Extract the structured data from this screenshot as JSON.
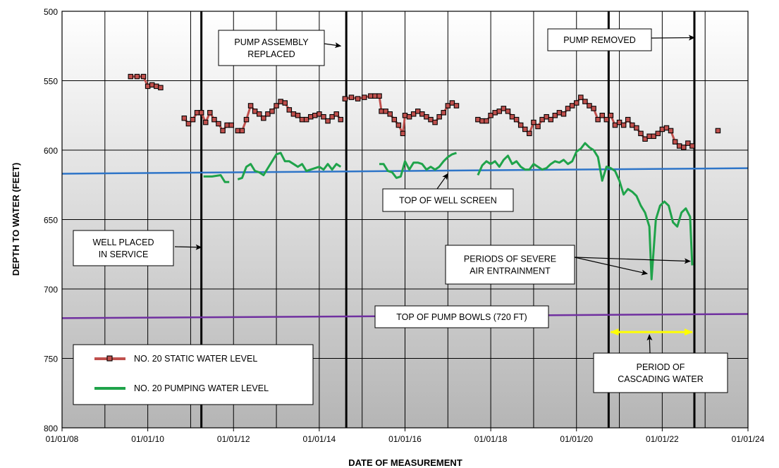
{
  "chart_data": {
    "type": "line",
    "xlabel": "DATE OF MEASUREMENT",
    "ylabel": "DEPTH TO WATER (FEET)",
    "x_ticks": [
      "01/01/08",
      "01/01/10",
      "01/01/12",
      "01/01/14",
      "01/01/16",
      "01/01/18",
      "01/01/20",
      "01/01/22",
      "01/01/24"
    ],
    "xlim": [
      2008,
      2024
    ],
    "ylim": [
      500,
      800
    ],
    "y_inverted": true,
    "y_ticks": [
      500,
      550,
      600,
      650,
      700,
      750,
      800
    ],
    "grid": true,
    "legend_placement": "bottom-left",
    "series": [
      {
        "name": "NO. 20 STATIC WATER LEVEL",
        "color": "#c0504d",
        "marker": "square",
        "segments": [
          [
            [
              2009.6,
              547
            ],
            [
              2009.75,
              547
            ],
            [
              2009.9,
              547
            ],
            [
              2010.0,
              554
            ],
            [
              2010.1,
              553
            ],
            [
              2010.2,
              554
            ],
            [
              2010.3,
              555
            ]
          ],
          [
            [
              2010.85,
              577
            ],
            [
              2010.95,
              581
            ],
            [
              2011.05,
              578
            ],
            [
              2011.15,
              573
            ],
            [
              2011.25,
              573
            ],
            [
              2011.35,
              580
            ],
            [
              2011.45,
              573
            ],
            [
              2011.55,
              578
            ],
            [
              2011.65,
              581
            ],
            [
              2011.75,
              586
            ],
            [
              2011.85,
              582
            ],
            [
              2011.95,
              582
            ]
          ],
          [
            [
              2012.1,
              586
            ],
            [
              2012.2,
              586
            ],
            [
              2012.3,
              578
            ],
            [
              2012.4,
              568
            ],
            [
              2012.5,
              572
            ],
            [
              2012.6,
              574
            ],
            [
              2012.7,
              577
            ],
            [
              2012.8,
              574
            ],
            [
              2012.9,
              572
            ],
            [
              2013.0,
              568
            ],
            [
              2013.1,
              565
            ],
            [
              2013.2,
              566
            ],
            [
              2013.3,
              571
            ],
            [
              2013.4,
              574
            ],
            [
              2013.5,
              575
            ],
            [
              2013.6,
              578
            ],
            [
              2013.7,
              578
            ],
            [
              2013.8,
              576
            ],
            [
              2013.9,
              575
            ],
            [
              2014.0,
              574
            ],
            [
              2014.1,
              576
            ],
            [
              2014.2,
              579
            ],
            [
              2014.3,
              576
            ],
            [
              2014.4,
              574
            ],
            [
              2014.5,
              578
            ]
          ],
          [
            [
              2014.6,
              563
            ],
            [
              2014.75,
              562
            ],
            [
              2014.9,
              563
            ],
            [
              2015.05,
              562
            ],
            [
              2015.2,
              561
            ],
            [
              2015.3,
              561
            ],
            [
              2015.4,
              561
            ],
            [
              2015.45,
              572
            ],
            [
              2015.55,
              572
            ],
            [
              2015.65,
              574
            ],
            [
              2015.75,
              578
            ],
            [
              2015.85,
              582
            ],
            [
              2015.95,
              588
            ],
            [
              2016.0,
              575
            ],
            [
              2016.1,
              576
            ],
            [
              2016.2,
              574
            ],
            [
              2016.3,
              572
            ],
            [
              2016.4,
              574
            ],
            [
              2016.5,
              576
            ],
            [
              2016.6,
              578
            ],
            [
              2016.7,
              580
            ],
            [
              2016.8,
              576
            ],
            [
              2016.9,
              573
            ],
            [
              2017.0,
              568
            ],
            [
              2017.1,
              566
            ],
            [
              2017.2,
              568
            ]
          ],
          [
            [
              2017.7,
              578
            ],
            [
              2017.8,
              579
            ],
            [
              2017.9,
              579
            ],
            [
              2018.0,
              575
            ],
            [
              2018.1,
              573
            ],
            [
              2018.2,
              572
            ],
            [
              2018.3,
              570
            ],
            [
              2018.4,
              572
            ],
            [
              2018.5,
              576
            ],
            [
              2018.6,
              578
            ],
            [
              2018.7,
              582
            ],
            [
              2018.8,
              585
            ],
            [
              2018.9,
              588
            ],
            [
              2019.0,
              580
            ],
            [
              2019.1,
              583
            ],
            [
              2019.2,
              578
            ],
            [
              2019.3,
              576
            ],
            [
              2019.4,
              578
            ],
            [
              2019.5,
              575
            ],
            [
              2019.6,
              573
            ],
            [
              2019.7,
              574
            ],
            [
              2019.8,
              570
            ],
            [
              2019.9,
              568
            ],
            [
              2020.0,
              566
            ],
            [
              2020.1,
              562
            ],
            [
              2020.2,
              565
            ],
            [
              2020.3,
              568
            ],
            [
              2020.4,
              570
            ],
            [
              2020.5,
              578
            ],
            [
              2020.6,
              575
            ],
            [
              2020.7,
              578
            ],
            [
              2020.8,
              575
            ],
            [
              2020.9,
              582
            ],
            [
              2021.0,
              580
            ],
            [
              2021.1,
              582
            ],
            [
              2021.2,
              578
            ],
            [
              2021.3,
              582
            ],
            [
              2021.4,
              584
            ],
            [
              2021.5,
              588
            ],
            [
              2021.6,
              592
            ],
            [
              2021.7,
              590
            ],
            [
              2021.8,
              590
            ],
            [
              2021.9,
              588
            ],
            [
              2022.0,
              585
            ],
            [
              2022.1,
              584
            ],
            [
              2022.2,
              586
            ],
            [
              2022.3,
              594
            ],
            [
              2022.4,
              597
            ],
            [
              2022.5,
              598
            ],
            [
              2022.6,
              595
            ],
            [
              2022.7,
              597
            ]
          ],
          [
            [
              2023.3,
              586
            ]
          ]
        ]
      },
      {
        "name": "NO. 20 PUMPING WATER LEVEL",
        "color": "#1fa34a",
        "marker": "none",
        "segments": [
          [
            [
              2011.3,
              619
            ],
            [
              2011.5,
              619
            ],
            [
              2011.7,
              618
            ],
            [
              2011.8,
              623
            ],
            [
              2011.9,
              623
            ]
          ],
          [
            [
              2012.1,
              621
            ],
            [
              2012.2,
              620
            ],
            [
              2012.3,
              612
            ],
            [
              2012.4,
              610
            ],
            [
              2012.5,
              615
            ],
            [
              2012.6,
              616
            ],
            [
              2012.7,
              618
            ],
            [
              2012.8,
              613
            ],
            [
              2012.9,
              608
            ],
            [
              2013.0,
              603
            ],
            [
              2013.1,
              602
            ],
            [
              2013.2,
              608
            ],
            [
              2013.3,
              608
            ],
            [
              2013.4,
              610
            ],
            [
              2013.5,
              612
            ],
            [
              2013.6,
              610
            ],
            [
              2013.7,
              615
            ],
            [
              2013.8,
              614
            ],
            [
              2013.9,
              613
            ],
            [
              2014.0,
              612
            ],
            [
              2014.1,
              614
            ],
            [
              2014.2,
              610
            ],
            [
              2014.3,
              614
            ],
            [
              2014.4,
              610
            ],
            [
              2014.5,
              612
            ]
          ],
          [
            [
              2015.4,
              610
            ],
            [
              2015.5,
              610
            ],
            [
              2015.6,
              615
            ],
            [
              2015.7,
              616
            ],
            [
              2015.8,
              620
            ],
            [
              2015.9,
              619
            ],
            [
              2016.0,
              608
            ],
            [
              2016.1,
              614
            ],
            [
              2016.2,
              609
            ],
            [
              2016.3,
              609
            ],
            [
              2016.4,
              610
            ],
            [
              2016.5,
              614
            ],
            [
              2016.6,
              612
            ],
            [
              2016.7,
              614
            ],
            [
              2016.8,
              612
            ],
            [
              2016.9,
              608
            ],
            [
              2017.0,
              605
            ],
            [
              2017.1,
              603
            ],
            [
              2017.2,
              602
            ]
          ],
          [
            [
              2017.7,
              618
            ],
            [
              2017.8,
              611
            ],
            [
              2017.9,
              608
            ],
            [
              2018.0,
              610
            ],
            [
              2018.1,
              608
            ],
            [
              2018.2,
              612
            ],
            [
              2018.3,
              607
            ],
            [
              2018.4,
              604
            ],
            [
              2018.5,
              610
            ],
            [
              2018.6,
              608
            ],
            [
              2018.7,
              612
            ],
            [
              2018.8,
              614
            ],
            [
              2018.9,
              614
            ],
            [
              2019.0,
              610
            ],
            [
              2019.1,
              612
            ],
            [
              2019.2,
              614
            ],
            [
              2019.3,
              613
            ],
            [
              2019.4,
              610
            ],
            [
              2019.5,
              608
            ],
            [
              2019.6,
              609
            ],
            [
              2019.7,
              607
            ],
            [
              2019.8,
              610
            ],
            [
              2019.9,
              608
            ],
            [
              2020.0,
              601
            ],
            [
              2020.1,
              599
            ],
            [
              2020.2,
              595
            ],
            [
              2020.3,
              598
            ],
            [
              2020.4,
              600
            ],
            [
              2020.5,
              605
            ],
            [
              2020.6,
              622
            ],
            [
              2020.7,
              612
            ],
            [
              2020.8,
              613
            ],
            [
              2020.9,
              615
            ],
            [
              2021.0,
              622
            ],
            [
              2021.1,
              632
            ],
            [
              2021.2,
              628
            ],
            [
              2021.3,
              630
            ],
            [
              2021.4,
              633
            ],
            [
              2021.5,
              640
            ],
            [
              2021.6,
              645
            ],
            [
              2021.7,
              655
            ],
            [
              2021.75,
              693
            ],
            [
              2021.85,
              650
            ],
            [
              2021.95,
              640
            ],
            [
              2022.05,
              637
            ],
            [
              2022.15,
              640
            ],
            [
              2022.25,
              652
            ],
            [
              2022.35,
              655
            ],
            [
              2022.45,
              645
            ],
            [
              2022.55,
              642
            ],
            [
              2022.65,
              648
            ],
            [
              2022.7,
              683
            ]
          ]
        ]
      },
      {
        "name": "TOP OF WELL SCREEN",
        "color": "#2e75c8",
        "marker": "none",
        "segments": [
          [
            [
              2008,
              617
            ],
            [
              2024,
              613
            ]
          ]
        ]
      },
      {
        "name": "TOP OF PUMP BOWLS (720 FT)",
        "color": "#7030a0",
        "marker": "none",
        "segments": [
          [
            [
              2008,
              721
            ],
            [
              2024,
              718
            ]
          ]
        ]
      }
    ],
    "event_lines": [
      2011.25,
      2014.63,
      2020.75,
      2022.75
    ],
    "annotations": [
      {
        "text": [
          "PUMP ASSEMBLY",
          "REPLACED"
        ],
        "target": [
          2014.5,
          525
        ]
      },
      {
        "text": [
          "PUMP REMOVED"
        ],
        "target": [
          2022.75,
          519
        ]
      },
      {
        "text": [
          "TOP OF WELL SCREEN"
        ],
        "target": [
          2017.0,
          617
        ]
      },
      {
        "text": [
          "WELL PLACED",
          "IN SERVICE"
        ],
        "target": [
          2011.25,
          670
        ]
      },
      {
        "text": [
          "PERIODS OF SEVERE",
          "AIR ENTRAINMENT"
        ],
        "target": [
          2021.65,
          689
        ],
        "target2": [
          2022.65,
          680
        ]
      },
      {
        "text": [
          "TOP OF PUMP BOWLS (720 FT)"
        ],
        "target": null
      },
      {
        "text": [
          "PERIOD OF",
          "CASCADING WATER"
        ],
        "target": [
          2021.7,
          733
        ]
      }
    ],
    "cascading_period": {
      "from": 2020.75,
      "to": 2022.75,
      "depth": 731,
      "color": "#ffff00"
    }
  }
}
